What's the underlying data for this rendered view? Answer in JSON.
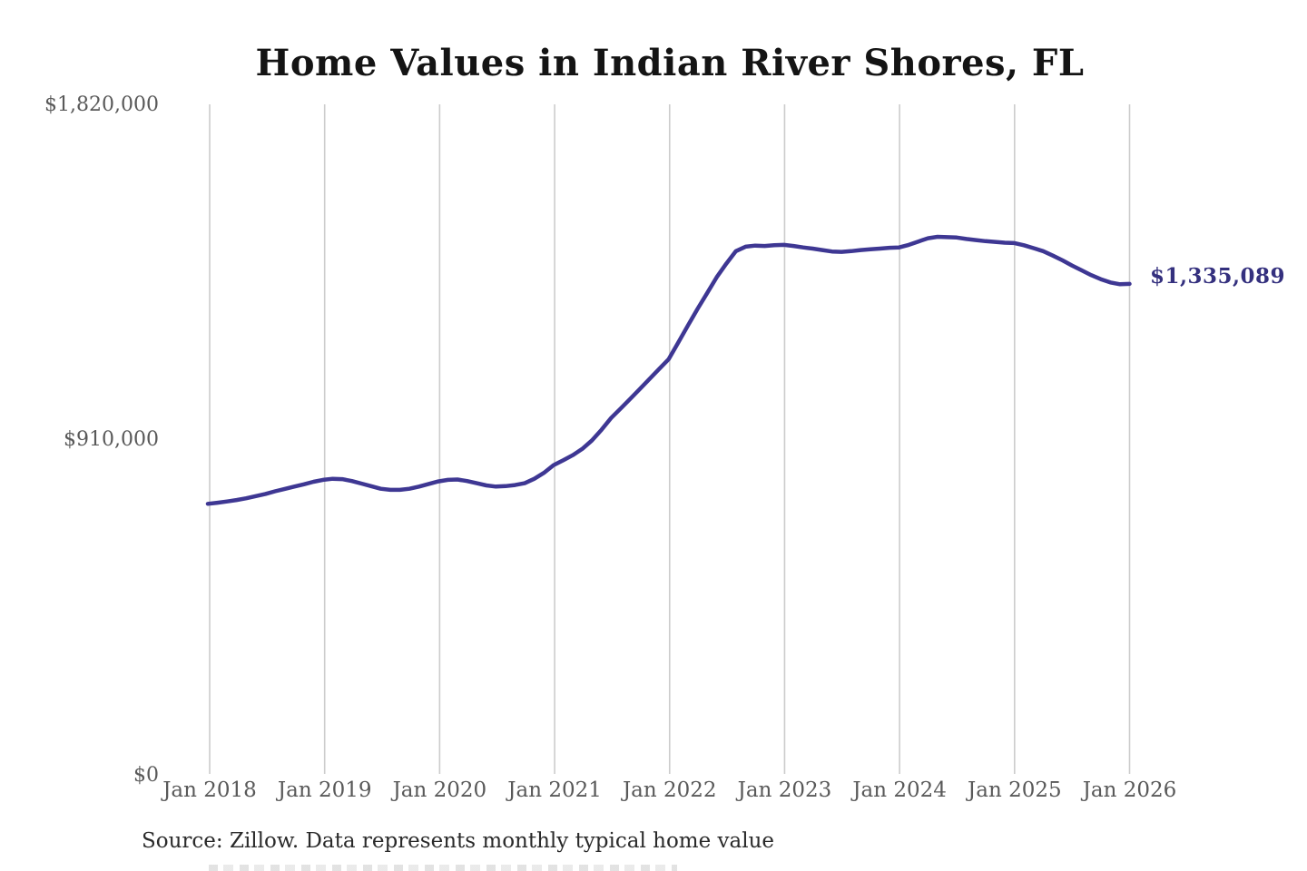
{
  "title": "Home Values in Indian River Shores, FL",
  "end_label": "$1,335,089",
  "source": "Source: Zillow. Data represents monthly typical home value",
  "colors": {
    "line": "#3e3793",
    "end_label": "#34307e",
    "gridline": "#cccccc",
    "axis_text": "#595959",
    "title_text": "#141414",
    "source_text": "#2a2a2a",
    "background": "#ffffff"
  },
  "chart_data": {
    "type": "line",
    "title": "Home Values in Indian River Shores, FL",
    "xlabel": "",
    "ylabel": "",
    "x_tick_labels": [
      "Jan 2018",
      "Jan 2019",
      "Jan 2020",
      "Jan 2021",
      "Jan 2022",
      "Jan 2023",
      "Jan 2024",
      "Jan 2025",
      "Jan 2026"
    ],
    "y_tick_labels": [
      "$1,820,000",
      "$910,000",
      "$0"
    ],
    "y_ticks": [
      1820000,
      910000,
      0
    ],
    "ylim": [
      0,
      1820000
    ],
    "grid": "vertical-only",
    "legend": "none",
    "frequency": "monthly",
    "x_start": "Jan 2018",
    "x_end": "Jan 2026",
    "final_value": 1335089,
    "series": [
      {
        "name": "Typical home value (USD)",
        "values": [
          738000,
          741000,
          744500,
          748500,
          753000,
          759000,
          765000,
          772000,
          778500,
          785000,
          791000,
          798000,
          803000,
          806000,
          805000,
          800000,
          793000,
          786000,
          779000,
          776000,
          776000,
          779000,
          785000,
          792000,
          799000,
          803000,
          804000,
          800000,
          794000,
          788000,
          785000,
          786000,
          789000,
          794000,
          806000,
          822000,
          843000,
          856000,
          870000,
          887000,
          910000,
          939000,
          971000,
          997000,
          1023000,
          1050000,
          1077000,
          1104000,
          1131000,
          1176000,
          1222000,
          1267000,
          1310000,
          1353000,
          1390000,
          1424000,
          1436000,
          1439000,
          1438000,
          1440000,
          1441000,
          1438000,
          1434000,
          1431000,
          1427000,
          1423000,
          1422000,
          1424000,
          1427000,
          1429000,
          1431000,
          1433000,
          1434000,
          1441000,
          1450000,
          1459000,
          1463000,
          1462000,
          1461000,
          1457000,
          1454000,
          1451000,
          1449000,
          1447000,
          1446000,
          1440000,
          1432000,
          1424000,
          1412000,
          1399000,
          1385000,
          1372000,
          1359000,
          1348000,
          1339000,
          1334000,
          1335089
        ]
      }
    ]
  }
}
